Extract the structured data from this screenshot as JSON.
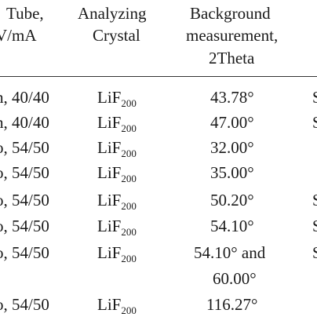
{
  "headers": {
    "tube_line1": "Tube,",
    "tube_line2": "V/mA",
    "crystal_line1": "Analyzing",
    "crystal_line2": "Crystal",
    "bg_line1": "Background",
    "bg_line2": "measurement,",
    "bg_line3": "2Theta"
  },
  "rows": [
    {
      "tube": "h, 40/40",
      "crystal": "LiF",
      "crystal_sub": "200",
      "bg": "43.78°",
      "s": "S"
    },
    {
      "tube": "h, 40/40",
      "crystal": "LiF",
      "crystal_sub": "200",
      "bg": "47.00°",
      "s": "S"
    },
    {
      "tube": "o, 54/50",
      "crystal": "LiF",
      "crystal_sub": "200",
      "bg": "32.00°",
      "s": ""
    },
    {
      "tube": "o, 54/50",
      "crystal": "LiF",
      "crystal_sub": "200",
      "bg": "35.00°",
      "s": ""
    },
    {
      "tube": "o, 54/50",
      "crystal": "LiF",
      "crystal_sub": "200",
      "bg": "50.20°",
      "s": "S"
    },
    {
      "tube": "o, 54/50",
      "crystal": "LiF",
      "crystal_sub": "200",
      "bg": "54.10°",
      "s": "S"
    },
    {
      "tube": "o, 54/50",
      "crystal": "LiF",
      "crystal_sub": "200",
      "bg": "54.10° and",
      "bg2": "60.00°",
      "s": "S"
    },
    {
      "tube": "o, 54/50",
      "crystal": "LiF",
      "crystal_sub": "200",
      "bg": "116.27°",
      "s": ""
    }
  ]
}
